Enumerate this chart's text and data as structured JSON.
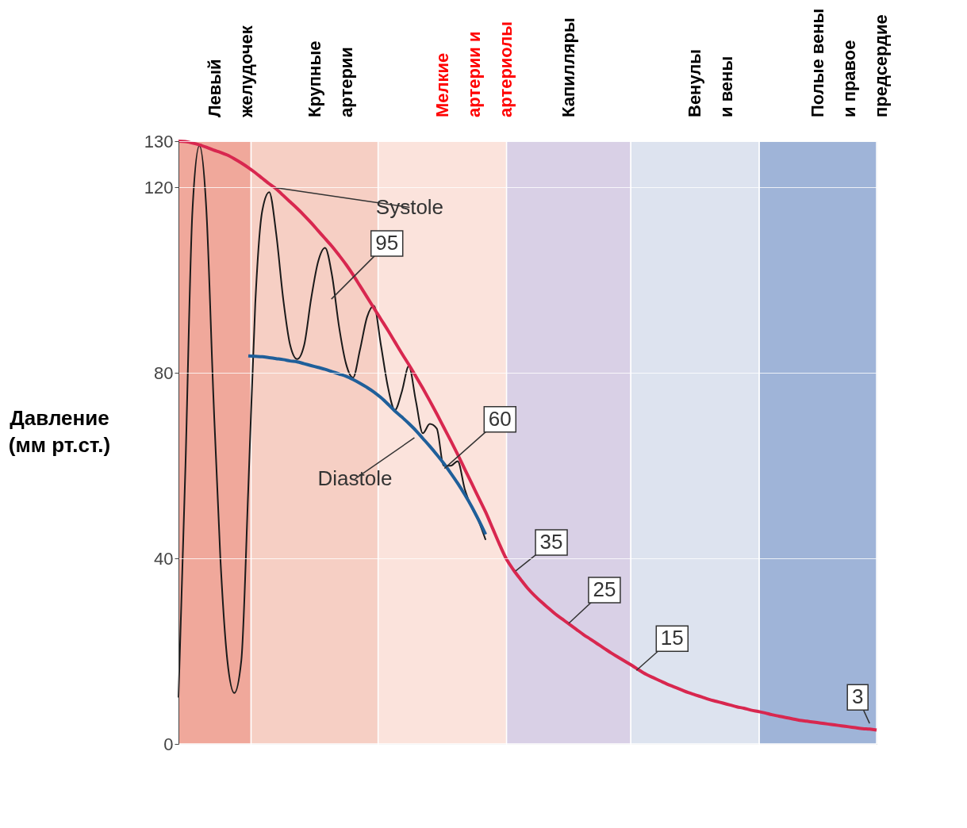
{
  "chart_data": {
    "type": "line",
    "ylabel": "Давление\n(мм рт.ст.)",
    "categories": [
      null,
      null,
      null,
      null,
      null,
      null,
      null,
      null,
      null,
      null,
      null,
      null,
      null,
      null,
      null,
      null,
      null,
      null,
      null,
      null,
      null,
      null,
      null,
      null,
      null,
      null,
      null,
      null,
      null,
      null,
      null,
      null,
      null,
      null,
      null,
      null,
      null,
      null,
      null,
      null,
      null,
      null,
      null,
      null,
      null,
      null,
      null,
      null,
      null,
      null,
      null,
      null,
      null,
      null,
      null,
      null,
      null,
      null,
      null,
      null,
      null,
      null,
      null,
      null,
      null,
      null,
      null,
      null,
      null,
      null,
      null,
      null,
      null,
      null,
      null,
      null,
      null,
      null,
      null,
      null,
      null,
      null,
      null,
      null,
      null,
      null,
      null,
      null,
      null,
      null,
      null,
      null,
      null,
      null,
      null,
      null,
      null,
      null,
      null,
      null,
      null
    ],
    "ylim": [
      0,
      130
    ],
    "yticks": [
      0,
      40,
      80,
      120,
      130
    ],
    "tick_labels": "y",
    "grid": "y",
    "series": [
      {
        "color": "#1a1a1a",
        "values": [
          10,
          60,
          115,
          129,
          115,
          75,
          40,
          18,
          11,
          18,
          55,
          95,
          115,
          119,
          110,
          96,
          86,
          83,
          86,
          96,
          104,
          107,
          101,
          90,
          82,
          79,
          85,
          92,
          94.5,
          86,
          77,
          72,
          76,
          81.5,
          74,
          67,
          69,
          68,
          60,
          60,
          61,
          55,
          51,
          48,
          44,
          null,
          null,
          null,
          null,
          null,
          null,
          null,
          null,
          null,
          null,
          null,
          null,
          null,
          null,
          null,
          null,
          null,
          null,
          null,
          null,
          null,
          null,
          null,
          null,
          null,
          null,
          null,
          null,
          null,
          null,
          null,
          null,
          null,
          null,
          null,
          null,
          null,
          null,
          null,
          null,
          null,
          null,
          null,
          null,
          null,
          null,
          null,
          null,
          null,
          null,
          null,
          null,
          null,
          null,
          null,
          null
        ]
      },
      {
        "color": "#1f5f9a",
        "values": [
          null,
          null,
          null,
          null,
          null,
          null,
          null,
          null,
          null,
          null,
          83.7,
          83.6,
          83.5,
          83.3,
          83.1,
          82.9,
          82.6,
          82.4,
          82,
          81.6,
          81.2,
          80.8,
          80.3,
          79.8,
          79.3,
          78.6,
          77.8,
          76.9,
          75.9,
          74.7,
          73.3,
          71.8,
          70.5,
          69.1,
          67.6,
          65.9,
          64.2,
          62.4,
          60.5,
          58.4,
          56.2,
          53.8,
          51.2,
          48.3,
          45.2,
          null,
          null,
          null,
          null,
          null,
          null,
          null,
          null,
          null,
          null,
          null,
          null,
          null,
          null,
          null,
          null,
          null,
          null,
          null,
          null,
          null,
          null,
          null,
          null,
          null,
          null,
          null,
          null,
          null,
          null,
          null,
          null,
          null,
          null,
          null,
          null,
          null,
          null,
          null,
          null,
          null,
          null,
          null,
          null,
          null,
          null,
          null,
          null,
          null,
          null,
          null,
          null,
          null,
          null,
          null,
          null
        ]
      },
      {
        "color": "#d8274f",
        "values": [
          130,
          129.9,
          129.6,
          129.2,
          128.7,
          128.1,
          127.6,
          127,
          126.2,
          125.3,
          124.3,
          123.2,
          122,
          120.8,
          119.7,
          118.3,
          116.9,
          115.5,
          114,
          112.4,
          110.7,
          109,
          107.3,
          105.4,
          103.4,
          101.2,
          98.8,
          96.4,
          94,
          91.6,
          89.2,
          86.7,
          84.2,
          81.8,
          79.3,
          76.7,
          74,
          71.2,
          68.3,
          65.4,
          62.4,
          59.3,
          56.2,
          53.1,
          50,
          46.5,
          43,
          39.8,
          37.5,
          35.5,
          33.6,
          32,
          30.6,
          29.3,
          28,
          26.9,
          25.8,
          24.7,
          23.6,
          22.6,
          21.6,
          20.6,
          19.6,
          18.7,
          17.8,
          16.9,
          15.9,
          15,
          14.3,
          13.6,
          12.9,
          12.3,
          11.7,
          11.1,
          10.6,
          10.1,
          9.6,
          9.2,
          8.8,
          8.4,
          8,
          7.7,
          7.3,
          7,
          6.7,
          6.3,
          6,
          5.7,
          5.4,
          5.1,
          4.9,
          4.7,
          4.5,
          4.3,
          4.1,
          3.9,
          3.7,
          3.5,
          3.3,
          3.2,
          3
        ]
      }
    ],
    "annotations": [
      "Левый\nжелудочек",
      "Крупные\nартерии",
      "Мелкие\nартерии и\nартериолы",
      "Капилляры",
      "Венулы\nи вены",
      "Полые вены\nи правое\nпредсердие",
      "Systole",
      "95",
      "60",
      "Diastole",
      "35",
      "25",
      "15",
      "3"
    ]
  }
}
